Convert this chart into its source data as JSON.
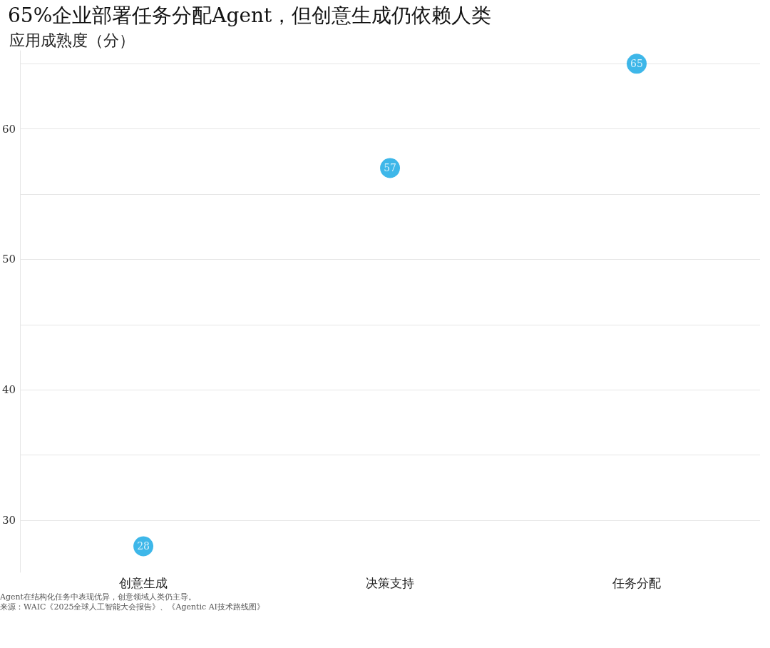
{
  "chart_data": {
    "type": "scatter",
    "title": "65%企业部署任务分配Agent，但创意生成仍依赖人类",
    "subtitle": "应用成熟度（分）",
    "categories": [
      "创意生成",
      "决策支持",
      "任务分配"
    ],
    "values": [
      28,
      57,
      65
    ],
    "color": "#0ea5e3",
    "ylim": [
      26,
      66
    ],
    "yticks": [
      30,
      {
        "value": 35,
        "label": null
      },
      40,
      {
        "value": 45,
        "label": null
      },
      50,
      {
        "value": 55,
        "label": null
      },
      60,
      {
        "value": 65,
        "label": null
      }
    ],
    "grid": "y",
    "marker": "circle",
    "data_labels": true,
    "annotations": [
      "Agent在结构化任务中表现优异，创意领域人类仍主导。",
      "来源：WAIC《2025全球人工智能大会报告》、《Agentic AI技术路线图》"
    ]
  }
}
